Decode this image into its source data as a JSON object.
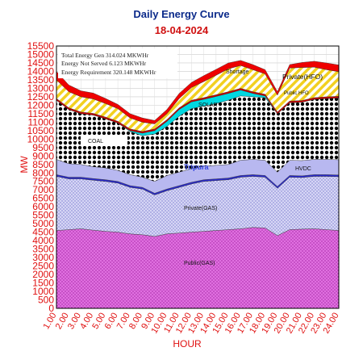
{
  "chart_data": {
    "type": "area",
    "title": "Daily Energy Curve",
    "subtitle": "18-04-2024",
    "xlabel": "HOUR",
    "ylabel": "MW",
    "ylim": [
      0,
      15500
    ],
    "ystep": 500,
    "grid": true,
    "categories": [
      "1.00",
      "2.00",
      "3.00",
      "4.00",
      "5.00",
      "6.00",
      "7.00",
      "8.00",
      "9.00",
      "10.00",
      "11.00",
      "12.00",
      "13.00",
      "14.00",
      "15.00",
      "16.00",
      "17.00",
      "18.00",
      "19.00",
      "20.00",
      "21.00",
      "22.00",
      "23.00",
      "24.00"
    ],
    "series": [
      {
        "name": "Public(GAS)",
        "color": "#cc33cc",
        "values": [
          4600,
          4650,
          4700,
          4620,
          4550,
          4500,
          4400,
          4350,
          4250,
          4400,
          4450,
          4500,
          4550,
          4600,
          4650,
          4700,
          4780,
          4750,
          4300,
          4650,
          4680,
          4700,
          4650,
          4600
        ]
      },
      {
        "name": "Private(GAS)",
        "color": "#9999ee",
        "values": [
          3200,
          3000,
          2950,
          2950,
          2950,
          2900,
          2750,
          2700,
          2450,
          2550,
          2700,
          2850,
          2950,
          2950,
          2950,
          3050,
          3020,
          3000,
          2800,
          3100,
          3050,
          3100,
          3150,
          3180
        ]
      },
      {
        "name": "Tripura",
        "color": "#2222cc",
        "values": [
          100,
          100,
          100,
          100,
          100,
          100,
          100,
          100,
          100,
          100,
          100,
          100,
          100,
          100,
          100,
          100,
          100,
          100,
          100,
          100,
          100,
          100,
          100,
          100
        ]
      },
      {
        "name": "HVDC",
        "color": "#aaaaff",
        "values": [
          900,
          800,
          750,
          700,
          700,
          650,
          650,
          600,
          700,
          800,
          800,
          800,
          800,
          800,
          800,
          900,
          900,
          900,
          850,
          900,
          900,
          900,
          900,
          900
        ]
      },
      {
        "name": "COAL",
        "color": "#000000",
        "values": [
          3500,
          3200,
          3000,
          3050,
          2900,
          2800,
          2550,
          2450,
          2800,
          2900,
          3300,
          3550,
          3550,
          3650,
          3800,
          3800,
          3700,
          3700,
          3450,
          3400,
          3450,
          3550,
          3600,
          3650
        ]
      },
      {
        "name": "SOLAR",
        "color": "#00d8e0",
        "values": [
          0,
          0,
          0,
          0,
          0,
          0,
          50,
          150,
          200,
          300,
          400,
          400,
          400,
          420,
          400,
          350,
          200,
          100,
          0,
          0,
          0,
          0,
          0,
          0
        ]
      },
      {
        "name": "Public HFO",
        "color": "#cc0000",
        "values": [
          100,
          100,
          100,
          100,
          100,
          100,
          100,
          100,
          100,
          100,
          100,
          100,
          100,
          100,
          100,
          100,
          100,
          100,
          100,
          100,
          100,
          100,
          100,
          100
        ]
      },
      {
        "name": "Private(HFO)",
        "color": "#f2e020",
        "values": [
          1100,
          950,
          900,
          850,
          800,
          750,
          650,
          550,
          300,
          350,
          550,
          750,
          950,
          1150,
          1350,
          1350,
          1300,
          1200,
          1000,
          1950,
          1950,
          1800,
          1600,
          1450
        ]
      },
      {
        "name": "Shortage",
        "color": "#ee0000",
        "values": [
          500,
          400,
          350,
          350,
          300,
          250,
          250,
          250,
          200,
          250,
          300,
          300,
          350,
          350,
          350,
          300,
          300,
          250,
          200,
          200,
          300,
          350,
          400,
          400
        ]
      }
    ],
    "labels": {
      "public_gas": "Public(GAS)",
      "private_gas": "Private(GAS)",
      "tripura": "Tripura",
      "hvdc": "HVDC",
      "coal": "COAL",
      "solar": "SOLAR",
      "public_hfo": "Public HFO",
      "private_hfo": "Private(HFO)",
      "shortage": "Shortage"
    },
    "annotations": [
      {
        "label": "Total Energy Gen",
        "value": "314.024",
        "unit": "MKWHr"
      },
      {
        "label": "Energy Not Served",
        "value": "6.123",
        "unit": "MKWHr"
      },
      {
        "label": "Energy Requirement",
        "value": "320.148",
        "unit": "MKWHr"
      }
    ]
  }
}
